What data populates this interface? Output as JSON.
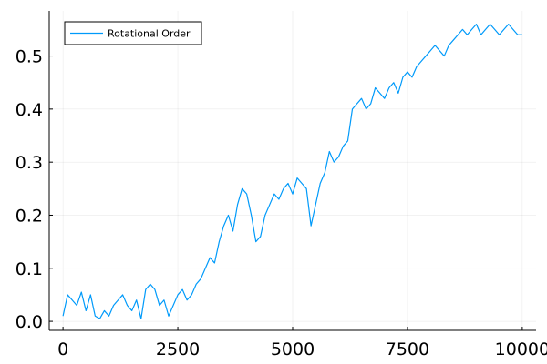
{
  "chart_data": {
    "type": "line",
    "title": "",
    "xlabel": "",
    "ylabel": "",
    "xlim": [
      -300,
      10300
    ],
    "ylim": [
      -0.017,
      0.585
    ],
    "x_ticks": [
      0,
      2500,
      5000,
      7500,
      10000
    ],
    "x_tick_labels": [
      "0",
      "2500",
      "5000",
      "7500",
      "10000"
    ],
    "y_ticks": [
      0.0,
      0.1,
      0.2,
      0.3,
      0.4,
      0.5
    ],
    "y_tick_labels": [
      "0.0",
      "0.1",
      "0.2",
      "0.3",
      "0.4",
      "0.5"
    ],
    "grid": true,
    "legend_position": "top-left",
    "colors": {
      "series": "#009AFA"
    },
    "series": [
      {
        "name": "Rotational Order",
        "x": [
          0,
          100,
          200,
          300,
          400,
          500,
          600,
          700,
          800,
          900,
          1000,
          1100,
          1200,
          1300,
          1400,
          1500,
          1600,
          1700,
          1800,
          1900,
          2000,
          2100,
          2200,
          2300,
          2400,
          2500,
          2600,
          2700,
          2800,
          2900,
          3000,
          3100,
          3200,
          3300,
          3400,
          3500,
          3600,
          3700,
          3800,
          3900,
          4000,
          4100,
          4200,
          4300,
          4400,
          4500,
          4600,
          4700,
          4800,
          4900,
          5000,
          5100,
          5200,
          5300,
          5400,
          5500,
          5600,
          5700,
          5800,
          5900,
          6000,
          6100,
          6200,
          6300,
          6400,
          6500,
          6600,
          6700,
          6800,
          6900,
          7000,
          7100,
          7200,
          7300,
          7400,
          7500,
          7600,
          7700,
          7800,
          7900,
          8000,
          8100,
          8200,
          8300,
          8400,
          8500,
          8600,
          8700,
          8800,
          8900,
          9000,
          9100,
          9200,
          9300,
          9400,
          9500,
          9600,
          9700,
          9800,
          9900,
          10000
        ],
        "y": [
          0.01,
          0.05,
          0.04,
          0.03,
          0.055,
          0.02,
          0.05,
          0.01,
          0.005,
          0.02,
          0.01,
          0.03,
          0.04,
          0.05,
          0.03,
          0.02,
          0.04,
          0.005,
          0.06,
          0.07,
          0.06,
          0.03,
          0.04,
          0.01,
          0.03,
          0.05,
          0.06,
          0.04,
          0.05,
          0.07,
          0.08,
          0.1,
          0.12,
          0.11,
          0.15,
          0.18,
          0.2,
          0.17,
          0.22,
          0.25,
          0.24,
          0.2,
          0.15,
          0.16,
          0.2,
          0.22,
          0.24,
          0.23,
          0.25,
          0.26,
          0.24,
          0.27,
          0.26,
          0.25,
          0.18,
          0.22,
          0.26,
          0.28,
          0.32,
          0.3,
          0.31,
          0.33,
          0.34,
          0.4,
          0.41,
          0.42,
          0.4,
          0.41,
          0.44,
          0.43,
          0.42,
          0.44,
          0.45,
          0.43,
          0.46,
          0.47,
          0.46,
          0.48,
          0.49,
          0.5,
          0.51,
          0.52,
          0.51,
          0.5,
          0.52,
          0.53,
          0.54,
          0.55,
          0.54,
          0.55,
          0.56,
          0.54,
          0.55,
          0.56,
          0.55,
          0.54,
          0.55,
          0.56,
          0.55,
          0.54,
          0.54
        ]
      }
    ]
  }
}
